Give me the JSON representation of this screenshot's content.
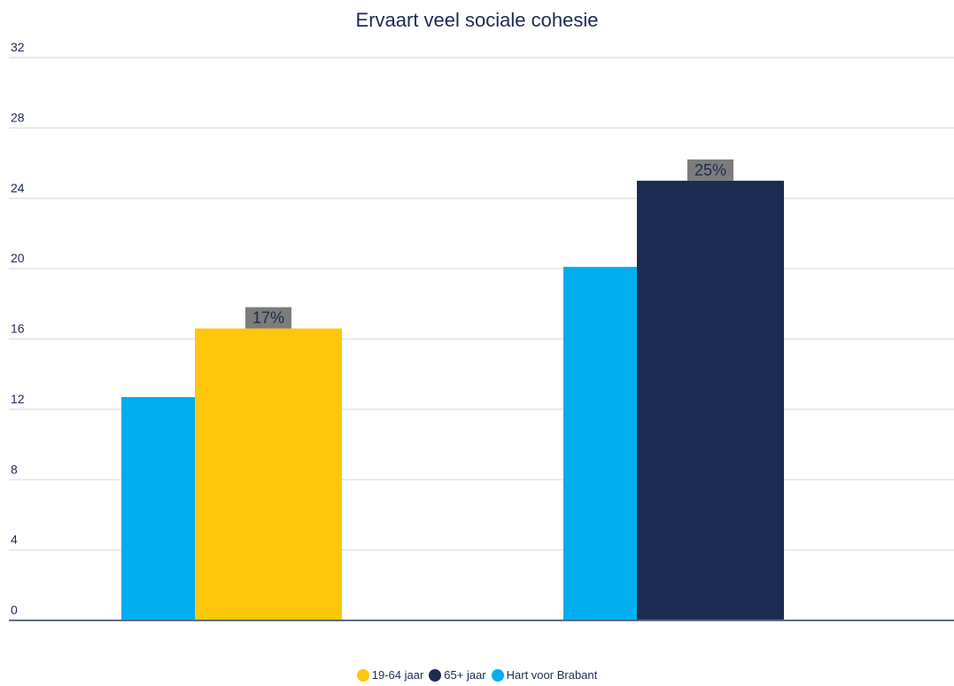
{
  "chart_data": {
    "type": "bar",
    "title": "Ervaart veel sociale cohesie",
    "xlabel": "",
    "ylabel": "",
    "ylim": [
      0,
      32
    ],
    "yticks": [
      0,
      4,
      8,
      12,
      16,
      20,
      24,
      28,
      32
    ],
    "grid": true,
    "legend_position": "bottom",
    "groups": [
      {
        "bars": [
          {
            "series": "Hart voor Brabant",
            "value": 12.7,
            "color": "#00adef"
          },
          {
            "series": "19-64 jaar",
            "value": 16.6,
            "color": "#ffc60b",
            "label": "17%"
          }
        ]
      },
      {
        "bars": [
          {
            "series": "Hart voor Brabant",
            "value": 20.1,
            "color": "#00adef"
          },
          {
            "series": "65+ jaar",
            "value": 25.0,
            "color": "#1c2b52",
            "label": "25%"
          }
        ]
      }
    ],
    "legend": [
      {
        "name": "19-64 jaar",
        "color": "#ffc60b"
      },
      {
        "name": "65+ jaar",
        "color": "#1c2b52"
      },
      {
        "name": "Hart voor Brabant",
        "color": "#00adef"
      }
    ]
  }
}
